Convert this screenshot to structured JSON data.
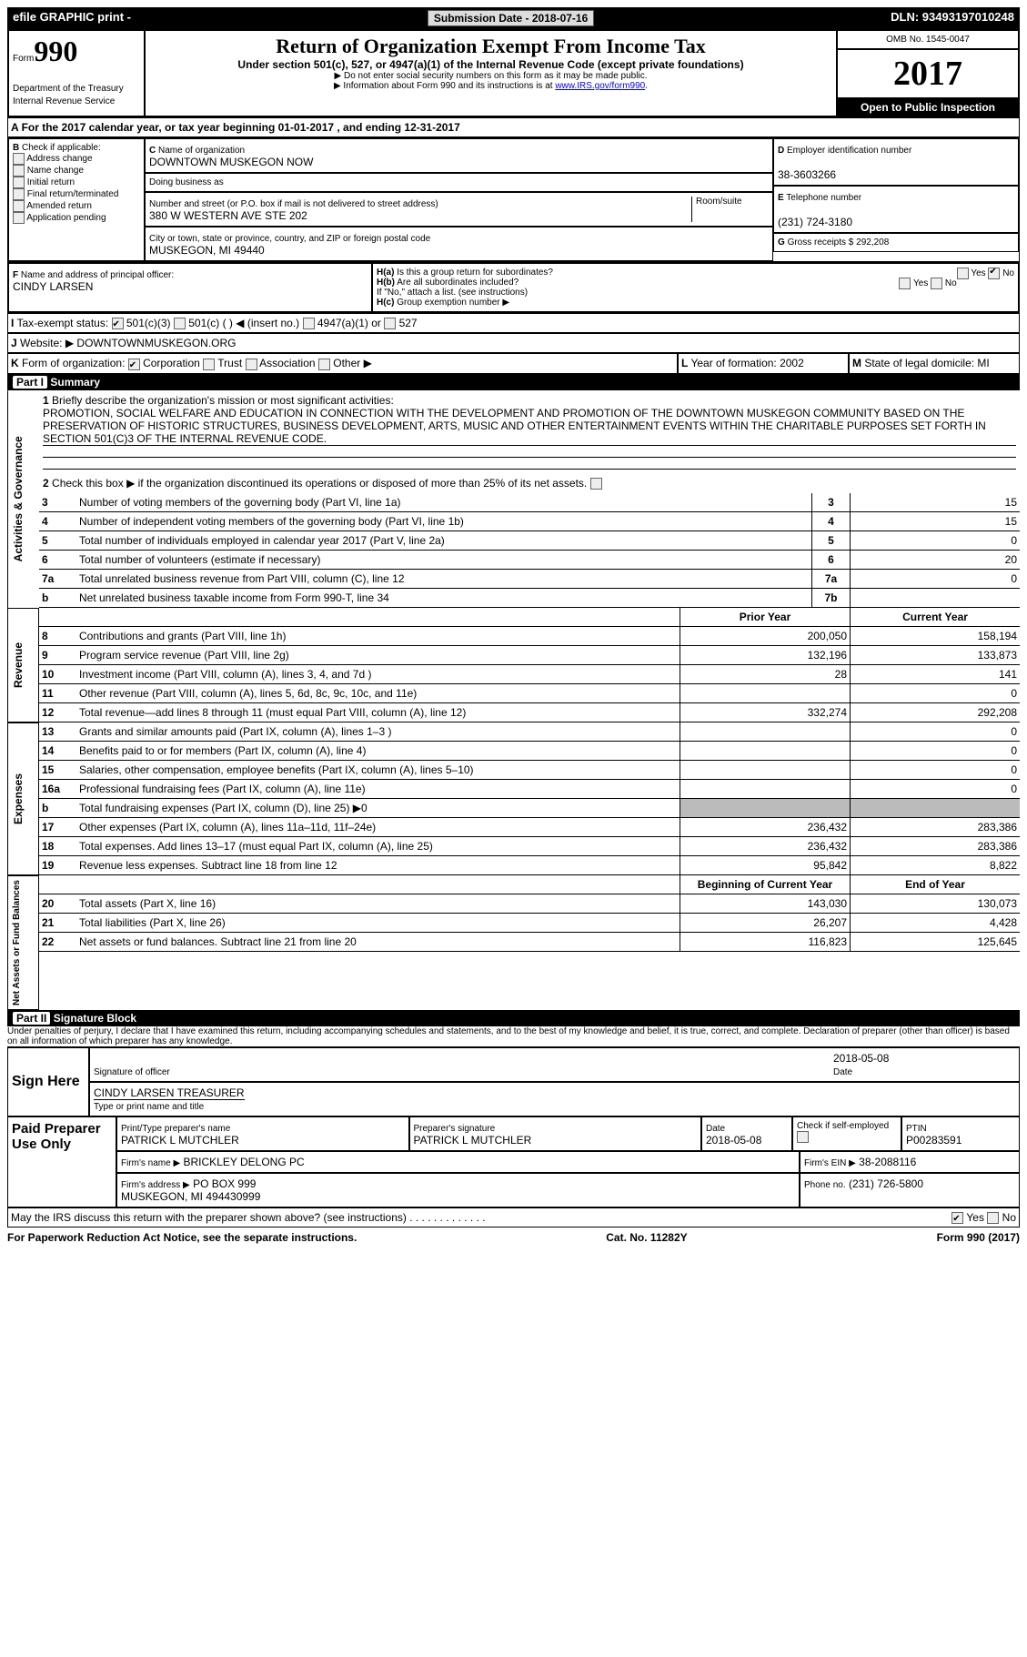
{
  "header": {
    "efile_label": "efile GRAPHIC print -",
    "submission_label": "Submission Date - 2018-07-16",
    "dln_label": "DLN: 93493197010248"
  },
  "form_label": "Form",
  "form990": "990",
  "dept1": "Department of the Treasury",
  "dept2": "Internal Revenue Service",
  "title": "Return of Organization Exempt From Income Tax",
  "subtitle": "Under section 501(c), 527, or 4947(a)(1) of the Internal Revenue Code (except private foundations)",
  "note1": "▶ Do not enter social security numbers on this form as it may be made public.",
  "note2": "▶ Information about Form 990 and its instructions is at ",
  "note2link": "www.IRS.gov/form990",
  "omb": "OMB No. 1545-0047",
  "year": "2017",
  "open": "Open to Public Inspection",
  "periodA": "For the 2017 calendar year, or tax year beginning 01-01-2017   , and ending 12-31-2017",
  "B": {
    "title": "Check if applicable:",
    "opts": [
      "Address change",
      "Name change",
      "Initial return",
      "Final return/terminated",
      "Amended return",
      "Application pending"
    ]
  },
  "C": {
    "name_label": "Name of organization",
    "name": "DOWNTOWN MUSKEGON NOW",
    "dba_label": "Doing business as",
    "addr_label": "Number and street (or P.O. box if mail is not delivered to street address)",
    "room_label": "Room/suite",
    "addr": "380 W WESTERN AVE STE 202",
    "city_label": "City or town, state or province, country, and ZIP or foreign postal code",
    "city": "MUSKEGON, MI  49440"
  },
  "D": {
    "label": "Employer identification number",
    "val": "38-3603266"
  },
  "E": {
    "label": "Telephone number",
    "val": "(231) 724-3180"
  },
  "G": {
    "label": "Gross receipts $ 292,208"
  },
  "F": {
    "label": "Name and address of principal officer:",
    "val": "CINDY LARSEN"
  },
  "Ha": "Is this a group return for subordinates?",
  "Hb": "Are all subordinates included?",
  "Hnote": "If \"No,\" attach a list. (see instructions)",
  "Hc": "Group exemption number ▶",
  "I": {
    "label": "Tax-exempt status:",
    "opts": [
      "501(c)(3)",
      "501(c) (   ) ◀ (insert no.)",
      "4947(a)(1) or",
      "527"
    ]
  },
  "J": {
    "label": "Website: ▶",
    "val": "DOWNTOWNMUSKEGON.ORG"
  },
  "K": "Form of organization:",
  "Kopts": [
    "Corporation",
    "Trust",
    "Association",
    "Other ▶"
  ],
  "L": "Year of formation: 2002",
  "M": "State of legal domicile: MI",
  "partI": "Part I",
  "partI_title": "Summary",
  "mission_label": "Briefly describe the organization's mission or most significant activities:",
  "mission": "PROMOTION, SOCIAL WELFARE AND EDUCATION IN CONNECTION WITH THE DEVELOPMENT AND PROMOTION OF THE DOWNTOWN MUSKEGON COMMUNITY BASED ON THE PRESERVATION OF HISTORIC STRUCTURES, BUSINESS DEVELOPMENT, ARTS, MUSIC AND OTHER ENTERTAINMENT EVENTS WITHIN THE CHARITABLE PURPOSES SET FORTH IN SECTION 501(C)3 OF THE INTERNAL REVENUE CODE.",
  "line2": "Check this box ▶     if the organization discontinued its operations or disposed of more than 25% of its net assets.",
  "governance_lines": [
    {
      "n": "3",
      "d": "Number of voting members of the governing body (Part VI, line 1a)",
      "box": "3",
      "v": "15"
    },
    {
      "n": "4",
      "d": "Number of independent voting members of the governing body (Part VI, line 1b)",
      "box": "4",
      "v": "15"
    },
    {
      "n": "5",
      "d": "Total number of individuals employed in calendar year 2017 (Part V, line 2a)",
      "box": "5",
      "v": "0"
    },
    {
      "n": "6",
      "d": "Total number of volunteers (estimate if necessary)",
      "box": "6",
      "v": "20"
    },
    {
      "n": "7a",
      "d": "Total unrelated business revenue from Part VIII, column (C), line 12",
      "box": "7a",
      "v": "0"
    },
    {
      "n": "b",
      "d": "Net unrelated business taxable income from Form 990-T, line 34",
      "box": "7b",
      "v": ""
    }
  ],
  "col_prior": "Prior Year",
  "col_current": "Current Year",
  "revenue": [
    {
      "n": "8",
      "d": "Contributions and grants (Part VIII, line 1h)",
      "p": "200,050",
      "c": "158,194"
    },
    {
      "n": "9",
      "d": "Program service revenue (Part VIII, line 2g)",
      "p": "132,196",
      "c": "133,873"
    },
    {
      "n": "10",
      "d": "Investment income (Part VIII, column (A), lines 3, 4, and 7d )",
      "p": "28",
      "c": "141"
    },
    {
      "n": "11",
      "d": "Other revenue (Part VIII, column (A), lines 5, 6d, 8c, 9c, 10c, and 11e)",
      "p": "",
      "c": "0"
    },
    {
      "n": "12",
      "d": "Total revenue—add lines 8 through 11 (must equal Part VIII, column (A), line 12)",
      "p": "332,274",
      "c": "292,208"
    }
  ],
  "expenses": [
    {
      "n": "13",
      "d": "Grants and similar amounts paid (Part IX, column (A), lines 1–3 )",
      "p": "",
      "c": "0"
    },
    {
      "n": "14",
      "d": "Benefits paid to or for members (Part IX, column (A), line 4)",
      "p": "",
      "c": "0"
    },
    {
      "n": "15",
      "d": "Salaries, other compensation, employee benefits (Part IX, column (A), lines 5–10)",
      "p": "",
      "c": "0"
    },
    {
      "n": "16a",
      "d": "Professional fundraising fees (Part IX, column (A), line 11e)",
      "p": "",
      "c": "0"
    },
    {
      "n": "b",
      "d": "Total fundraising expenses (Part IX, column (D), line 25) ▶0",
      "grey": true
    },
    {
      "n": "17",
      "d": "Other expenses (Part IX, column (A), lines 11a–11d, 11f–24e)",
      "p": "236,432",
      "c": "283,386"
    },
    {
      "n": "18",
      "d": "Total expenses. Add lines 13–17 (must equal Part IX, column (A), line 25)",
      "p": "236,432",
      "c": "283,386"
    },
    {
      "n": "19",
      "d": "Revenue less expenses. Subtract line 18 from line 12",
      "p": "95,842",
      "c": "8,822"
    }
  ],
  "col_boy": "Beginning of Current Year",
  "col_eoy": "End of Year",
  "balances": [
    {
      "n": "20",
      "d": "Total assets (Part X, line 16)",
      "p": "143,030",
      "c": "130,073"
    },
    {
      "n": "21",
      "d": "Total liabilities (Part X, line 26)",
      "p": "26,207",
      "c": "4,428"
    },
    {
      "n": "22",
      "d": "Net assets or fund balances. Subtract line 21 from line 20",
      "p": "116,823",
      "c": "125,645"
    }
  ],
  "partII": "Part II",
  "partII_title": "Signature Block",
  "perjury": "Under penalties of perjury, I declare that I have examined this return, including accompanying schedules and statements, and to the best of my knowledge and belief, it is true, correct, and complete. Declaration of preparer (other than officer) is based on all information of which preparer has any knowledge.",
  "sign_here": "Sign Here",
  "sig_of_officer": "Signature of officer",
  "sig_date": "2018-05-08",
  "date_label": "Date",
  "typed_name": "CINDY LARSEN TREASURER",
  "typed_name_label": "Type or print name and title",
  "paid_prep": "Paid Preparer Use Only",
  "prep_name_label": "Print/Type preparer's name",
  "prep_name": "PATRICK L MUTCHLER",
  "prep_sig_label": "Preparer's signature",
  "prep_sig": "PATRICK L MUTCHLER",
  "prep_date_label": "Date",
  "prep_date": "2018-05-08",
  "prep_check": "Check      if self-employed",
  "ptin_label": "PTIN",
  "ptin": "P00283591",
  "firm_name_label": "Firm's name   ▶",
  "firm_name": "BRICKLEY DELONG PC",
  "firm_ein_label": "Firm's EIN ▶",
  "firm_ein": "38-2088116",
  "firm_addr_label": "Firm's address ▶",
  "firm_addr": "PO BOX 999",
  "firm_addr2": "MUSKEGON, MI  494430999",
  "firm_phone_label": "Phone no.",
  "firm_phone": "(231) 726-5800",
  "discuss": "May the IRS discuss this return with the preparer shown above? (see instructions)",
  "yes": "Yes",
  "no": "No",
  "footer_left": "For Paperwork Reduction Act Notice, see the separate instructions.",
  "footer_mid": "Cat. No. 11282Y",
  "footer_right": "Form 990 (2017)",
  "vlabels": {
    "gov": "Activities & Governance",
    "rev": "Revenue",
    "exp": "Expenses",
    "bal": "Net Assets or Fund Balances"
  }
}
